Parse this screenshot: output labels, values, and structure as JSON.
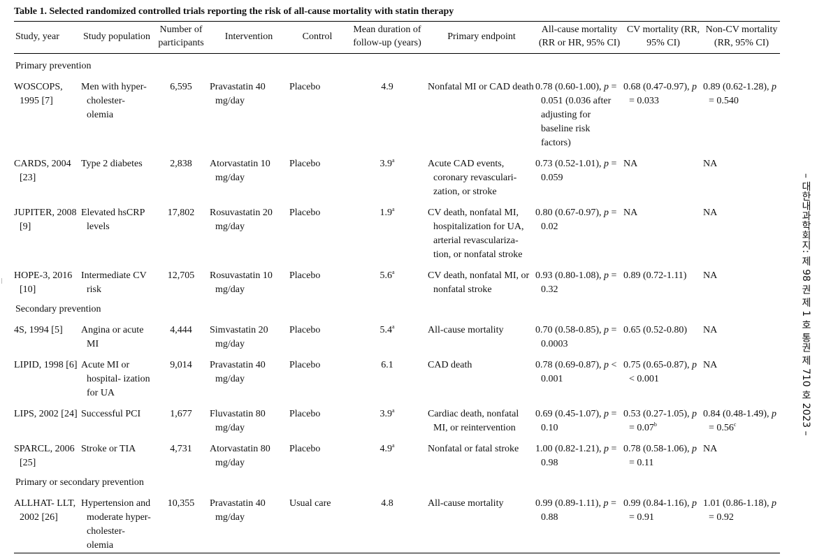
{
  "caption": "Table 1. Selected randomized controlled trials reporting the risk of all-cause mortality with statin therapy",
  "headers": [
    "Study, year",
    "Study population",
    "Number of participants",
    "Intervention",
    "Control",
    "Mean duration of follow-up (years)",
    "Primary endpoint",
    "All-cause mortality (RR or HR, 95% CI)",
    "CV mortality (RR, 95% CI)",
    "Non-CV mortality (RR, 95% CI)"
  ],
  "sections": {
    "primary": "Primary prevention",
    "secondary": "Secondary prevention",
    "mixed": "Primary or secondary prevention"
  },
  "rows": [
    {
      "study": "WOSCOPS, 1995 [7]",
      "population": "Men with hyper- cholester- olemia",
      "n": "6,595",
      "intervention": "Pravastatin 40 mg/day",
      "control": "Placebo",
      "duration": "4.9",
      "dsup": "",
      "endpoint": "Nonfatal MI or CAD death",
      "acm": "0.78 (0.60-1.00), p = 0.051 (0.036 after adjusting for baseline risk factors)",
      "cvm": "0.68 (0.47-0.97), p = 0.033",
      "ncvm": "0.89 (0.62-1.28), p = 0.540"
    },
    {
      "study": "CARDS, 2004 [23]",
      "population": "Type 2 diabetes",
      "n": "2,838",
      "intervention": "Atorvastatin 10 mg/day",
      "control": "Placebo",
      "duration": "3.9",
      "dsup": "a",
      "endpoint": "Acute CAD events, coronary revasculari- zation, or stroke",
      "acm": "0.73 (0.52-1.01), p = 0.059",
      "cvm": "NA",
      "ncvm": "NA"
    },
    {
      "study": "JUPITER, 2008 [9]",
      "population": "Elevated hsCRP levels",
      "n": "17,802",
      "intervention": "Rosuvastatin 20 mg/day",
      "control": "Placebo",
      "duration": "1.9",
      "dsup": "a",
      "endpoint": "CV death, nonfatal MI, hospitalization for UA, arterial revasculariza- tion, or nonfatal stroke",
      "acm": "0.80 (0.67-0.97), p = 0.02",
      "cvm": "NA",
      "ncvm": "NA"
    },
    {
      "study": "HOPE-3, 2016 [10]",
      "population": "Intermediate CV risk",
      "n": "12,705",
      "intervention": "Rosuvastatin 10 mg/day",
      "control": "Placebo",
      "duration": "5.6",
      "dsup": "a",
      "endpoint": "CV death, nonfatal MI, or nonfatal stroke",
      "acm": "0.93 (0.80-1.08), p = 0.32",
      "cvm": "0.89 (0.72-1.11)",
      "ncvm": "NA"
    },
    {
      "study": "4S, 1994 [5]",
      "population": "Angina or acute MI",
      "n": "4,444",
      "intervention": "Simvastatin 20 mg/day",
      "control": "Placebo",
      "duration": "5.4",
      "dsup": "a",
      "endpoint": "All-cause mortality",
      "acm": "0.70 (0.58-0.85), p = 0.0003",
      "cvm": "0.65 (0.52-0.80)",
      "ncvm": "NA"
    },
    {
      "study": "LIPID, 1998 [6]",
      "population": "Acute MI or hospital- ization for UA",
      "n": "9,014",
      "intervention": "Pravastatin 40 mg/day",
      "control": "Placebo",
      "duration": "6.1",
      "dsup": "",
      "endpoint": "CAD death",
      "acm": "0.78 (0.69-0.87), p < 0.001",
      "cvm": "0.75 (0.65-0.87), p < 0.001",
      "ncvm": "NA"
    },
    {
      "study": "LIPS, 2002 [24]",
      "population": "Successful PCI",
      "n": "1,677",
      "intervention": "Fluvastatin 80 mg/day",
      "control": "Placebo",
      "duration": "3.9",
      "dsup": "a",
      "endpoint": "Cardiac death, nonfatal MI, or reintervention",
      "acm": "0.69 (0.45-1.07), p = 0.10",
      "cvm": "0.53 (0.27-1.05), p = 0.07b",
      "ncvm": "0.84 (0.48-1.49), p = 0.56c"
    },
    {
      "study": "SPARCL, 2006 [25]",
      "population": "Stroke or TIA",
      "n": "4,731",
      "intervention": "Atorvastatin 80 mg/day",
      "control": "Placebo",
      "duration": "4.9",
      "dsup": "a",
      "endpoint": "Nonfatal or fatal stroke",
      "acm": "1.00 (0.82-1.21), p = 0.98",
      "cvm": "0.78 (0.58-1.06), p = 0.11",
      "ncvm": "NA"
    },
    {
      "study": "ALLHAT- LLT, 2002 [26]",
      "population": "Hypertension and moderate hyper- cholester- olemia",
      "n": "10,355",
      "intervention": "Pravastatin 40 mg/day",
      "control": "Usual care",
      "duration": "4.8",
      "dsup": "",
      "endpoint": "All-cause mortality",
      "acm": "0.99 (0.89-1.11), p = 0.88",
      "cvm": "0.99 (0.84-1.16), p = 0.91",
      "ncvm": "1.01 (0.86-1.18), p = 0.92"
    }
  ],
  "sidebar": "– 대한내과학회지: 제 98 권 제 1 호 통권 제 710 호 2023 –"
}
